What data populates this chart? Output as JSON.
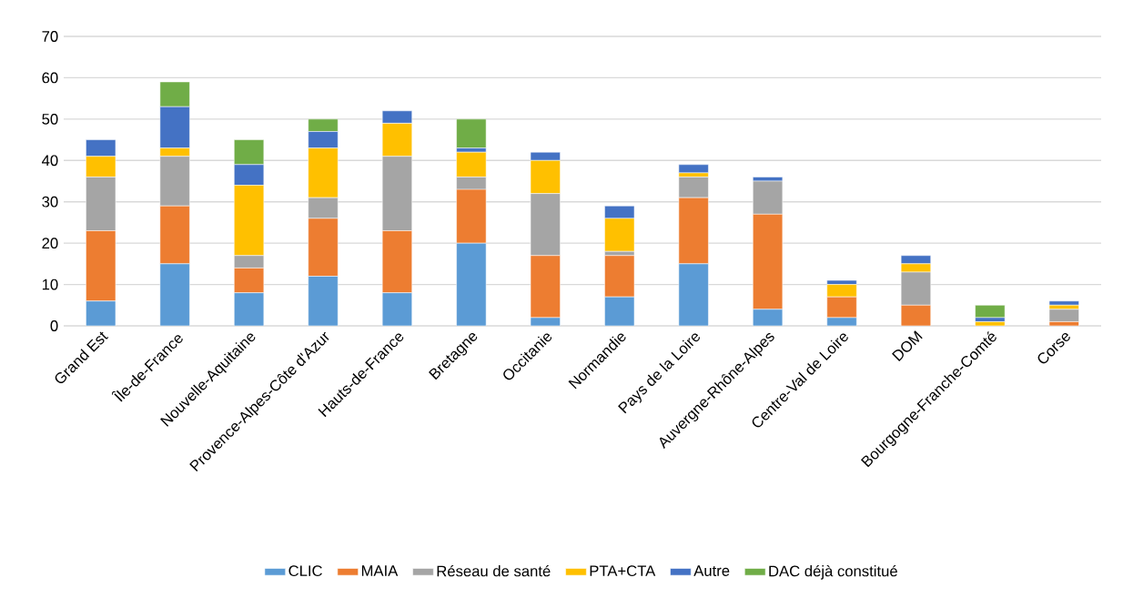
{
  "chart_data": {
    "type": "bar",
    "stacked": true,
    "categories": [
      "Grand Est",
      "Île-de-France",
      "Nouvelle-Aquitaine",
      "Provence-Alpes-Côte d'Azur",
      "Hauts-de-France",
      "Bretagne",
      "Occitanie",
      "Normandie",
      "Pays de la Loire",
      "Auvergne-Rhône-Alpes",
      "Centre-Val de Loire",
      "DOM",
      "Bourgogne-Franche-Comté",
      "Corse"
    ],
    "series": [
      {
        "name": "CLIC",
        "color": "#5b9bd5",
        "values": [
          6,
          15,
          8,
          12,
          8,
          20,
          2,
          7,
          15,
          4,
          2,
          0,
          0,
          0
        ]
      },
      {
        "name": "MAIA",
        "color": "#ed7d31",
        "values": [
          17,
          14,
          6,
          14,
          15,
          13,
          15,
          10,
          16,
          23,
          5,
          5,
          0,
          1
        ]
      },
      {
        "name": "Réseau de santé",
        "color": "#a5a5a5",
        "values": [
          13,
          12,
          3,
          5,
          18,
          3,
          15,
          1,
          5,
          8,
          0,
          8,
          0,
          3
        ]
      },
      {
        "name": "PTA+CTA",
        "color": "#ffc000",
        "values": [
          5,
          2,
          17,
          12,
          8,
          6,
          8,
          8,
          1,
          0,
          3,
          2,
          1,
          1
        ]
      },
      {
        "name": "Autre",
        "color": "#4472c4",
        "values": [
          4,
          10,
          5,
          4,
          3,
          1,
          2,
          3,
          2,
          1,
          1,
          2,
          1,
          1
        ]
      },
      {
        "name": "DAC déjà constitué",
        "color": "#70ad47",
        "values": [
          0,
          6,
          6,
          3,
          0,
          7,
          0,
          0,
          0,
          0,
          0,
          0,
          3,
          0
        ]
      }
    ],
    "ylim": [
      0,
      70
    ],
    "yticks": [
      0,
      10,
      20,
      30,
      40,
      50,
      60,
      70
    ],
    "grid": "y",
    "legend": "bottom"
  }
}
